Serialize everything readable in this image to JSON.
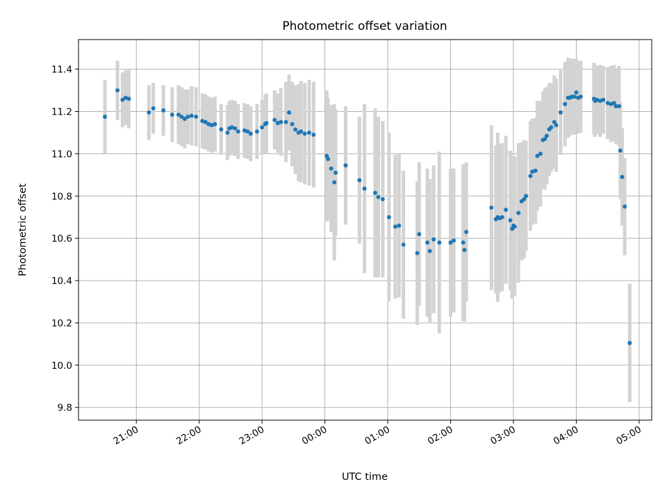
{
  "chart_data": {
    "type": "scatter",
    "title": "Photometric offset variation",
    "xlabel": "UTC time",
    "ylabel": "Photometric offset",
    "x_unit": "hours (time of day, continuing past midnight)",
    "xlim": [
      20.08,
      29.2
    ],
    "ylim": [
      9.74,
      11.54
    ],
    "grid": true,
    "y_ticks": [
      {
        "value": 9.8,
        "label": "9.8"
      },
      {
        "value": 10.0,
        "label": "10.0"
      },
      {
        "value": 10.2,
        "label": "10.2"
      },
      {
        "value": 10.4,
        "label": "10.4"
      },
      {
        "value": 10.6,
        "label": "10.6"
      },
      {
        "value": 10.8,
        "label": "10.8"
      },
      {
        "value": 11.0,
        "label": "11.0"
      },
      {
        "value": 11.2,
        "label": "11.2"
      },
      {
        "value": 11.4,
        "label": "11.4"
      }
    ],
    "x_ticks": [
      {
        "value": 21,
        "label": "21:00"
      },
      {
        "value": 22,
        "label": "22:00"
      },
      {
        "value": 23,
        "label": "23:00"
      },
      {
        "value": 24,
        "label": "00:00"
      },
      {
        "value": 25,
        "label": "01:00"
      },
      {
        "value": 26,
        "label": "02:00"
      },
      {
        "value": 27,
        "label": "03:00"
      },
      {
        "value": 28,
        "label": "04:00"
      },
      {
        "value": 29,
        "label": "05:00"
      }
    ],
    "colors": {
      "point": "#1f77b4",
      "errorbar": "#d3d3d3",
      "grid": "#b0b0b0"
    },
    "points": [
      [
        20.5,
        11.175,
        0.175
      ],
      [
        20.7,
        11.3,
        0.14
      ],
      [
        20.78,
        11.255,
        0.13
      ],
      [
        20.83,
        11.265,
        0.13
      ],
      [
        20.88,
        11.26,
        0.14
      ],
      [
        21.2,
        11.195,
        0.13
      ],
      [
        21.27,
        11.215,
        0.12
      ],
      [
        21.43,
        11.205,
        0.12
      ],
      [
        21.57,
        11.185,
        0.13
      ],
      [
        21.67,
        11.185,
        0.14
      ],
      [
        21.72,
        11.175,
        0.14
      ],
      [
        21.77,
        11.165,
        0.14
      ],
      [
        21.82,
        11.175,
        0.13
      ],
      [
        21.88,
        11.18,
        0.14
      ],
      [
        21.95,
        11.175,
        0.14
      ],
      [
        22.05,
        11.155,
        0.13
      ],
      [
        22.1,
        11.15,
        0.13
      ],
      [
        22.15,
        11.14,
        0.13
      ],
      [
        22.2,
        11.135,
        0.13
      ],
      [
        22.25,
        11.14,
        0.13
      ],
      [
        22.35,
        11.115,
        0.12
      ],
      [
        22.45,
        11.1,
        0.13
      ],
      [
        22.48,
        11.12,
        0.13
      ],
      [
        22.52,
        11.125,
        0.13
      ],
      [
        22.57,
        11.12,
        0.13
      ],
      [
        22.62,
        11.105,
        0.13
      ],
      [
        22.72,
        11.11,
        0.13
      ],
      [
        22.77,
        11.105,
        0.13
      ],
      [
        22.82,
        11.095,
        0.13
      ],
      [
        22.92,
        11.105,
        0.13
      ],
      [
        23.0,
        11.125,
        0.13
      ],
      [
        23.05,
        11.14,
        0.14
      ],
      [
        23.07,
        11.145,
        0.14
      ],
      [
        23.2,
        11.16,
        0.14
      ],
      [
        23.25,
        11.145,
        0.14
      ],
      [
        23.3,
        11.15,
        0.16
      ],
      [
        23.38,
        11.15,
        0.19
      ],
      [
        23.43,
        11.195,
        0.18
      ],
      [
        23.48,
        11.14,
        0.2
      ],
      [
        23.53,
        11.115,
        0.21
      ],
      [
        23.58,
        11.1,
        0.23
      ],
      [
        23.62,
        11.105,
        0.24
      ],
      [
        23.68,
        11.095,
        0.24
      ],
      [
        23.75,
        11.1,
        0.25
      ],
      [
        23.82,
        11.09,
        0.25
      ],
      [
        24.03,
        10.99,
        0.31
      ],
      [
        24.05,
        10.975,
        0.29
      ],
      [
        24.1,
        10.93,
        0.3
      ],
      [
        24.15,
        10.865,
        0.37
      ],
      [
        24.17,
        10.91,
        0.3
      ],
      [
        24.33,
        10.945,
        0.28
      ],
      [
        24.55,
        10.875,
        0.3
      ],
      [
        24.63,
        10.835,
        0.4
      ],
      [
        24.8,
        10.815,
        0.4
      ],
      [
        24.85,
        10.795,
        0.38
      ],
      [
        24.92,
        10.785,
        0.37
      ],
      [
        25.02,
        10.7,
        0.4
      ],
      [
        25.12,
        10.655,
        0.34
      ],
      [
        25.18,
        10.66,
        0.34
      ],
      [
        25.25,
        10.57,
        0.35
      ],
      [
        25.47,
        10.53,
        0.34
      ],
      [
        25.5,
        10.62,
        0.34
      ],
      [
        25.63,
        10.58,
        0.35
      ],
      [
        25.67,
        10.54,
        0.34
      ],
      [
        25.73,
        10.595,
        0.35
      ],
      [
        25.82,
        10.58,
        0.43
      ],
      [
        26.0,
        10.58,
        0.35
      ],
      [
        26.05,
        10.59,
        0.34
      ],
      [
        26.2,
        10.58,
        0.37
      ],
      [
        26.22,
        10.545,
        0.34
      ],
      [
        26.25,
        10.63,
        0.33
      ],
      [
        26.65,
        10.745,
        0.39
      ],
      [
        26.72,
        10.69,
        0.35
      ],
      [
        26.75,
        10.7,
        0.4
      ],
      [
        26.78,
        10.695,
        0.35
      ],
      [
        26.82,
        10.7,
        0.35
      ],
      [
        26.88,
        10.735,
        0.35
      ],
      [
        26.95,
        10.685,
        0.33
      ],
      [
        26.98,
        10.645,
        0.33
      ],
      [
        27.0,
        10.66,
        0.33
      ],
      [
        27.02,
        10.655,
        0.33
      ],
      [
        27.08,
        10.72,
        0.33
      ],
      [
        27.13,
        10.775,
        0.28
      ],
      [
        27.17,
        10.785,
        0.28
      ],
      [
        27.2,
        10.8,
        0.26
      ],
      [
        27.27,
        10.895,
        0.26
      ],
      [
        27.3,
        10.915,
        0.25
      ],
      [
        27.35,
        10.92,
        0.25
      ],
      [
        27.38,
        10.99,
        0.26
      ],
      [
        27.43,
        11.0,
        0.25
      ],
      [
        27.47,
        11.065,
        0.23
      ],
      [
        27.5,
        11.07,
        0.24
      ],
      [
        27.53,
        11.085,
        0.23
      ],
      [
        27.57,
        11.115,
        0.22
      ],
      [
        27.6,
        11.125,
        0.21
      ],
      [
        27.65,
        11.15,
        0.22
      ],
      [
        27.68,
        11.135,
        0.22
      ],
      [
        27.75,
        11.195,
        0.2
      ],
      [
        27.82,
        11.235,
        0.2
      ],
      [
        27.87,
        11.265,
        0.19
      ],
      [
        27.9,
        11.265,
        0.18
      ],
      [
        27.93,
        11.27,
        0.18
      ],
      [
        27.97,
        11.27,
        0.18
      ],
      [
        28.0,
        11.29,
        0.16
      ],
      [
        28.03,
        11.265,
        0.17
      ],
      [
        28.07,
        11.27,
        0.17
      ],
      [
        28.28,
        11.26,
        0.17
      ],
      [
        28.3,
        11.25,
        0.17
      ],
      [
        28.33,
        11.255,
        0.16
      ],
      [
        28.38,
        11.25,
        0.17
      ],
      [
        28.43,
        11.255,
        0.16
      ],
      [
        28.5,
        11.24,
        0.17
      ],
      [
        28.55,
        11.235,
        0.18
      ],
      [
        28.6,
        11.24,
        0.18
      ],
      [
        28.63,
        11.225,
        0.18
      ],
      [
        28.68,
        11.225,
        0.19
      ],
      [
        28.7,
        11.015,
        0.23
      ],
      [
        28.73,
        10.89,
        0.23
      ],
      [
        28.77,
        10.75,
        0.23
      ],
      [
        28.85,
        10.105,
        0.28
      ]
    ]
  }
}
